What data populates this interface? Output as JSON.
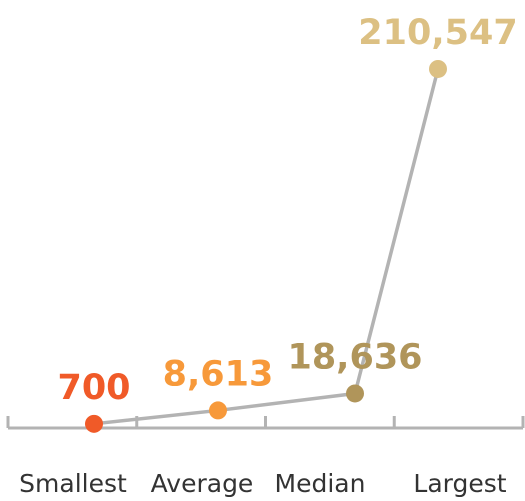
{
  "chart_data": {
    "type": "line",
    "categories": [
      "Smallest",
      "Average",
      "Median",
      "Largest"
    ],
    "values": [
      700,
      8613,
      18636,
      210547
    ],
    "value_labels": [
      "700",
      "8,613",
      "18,636",
      "210,547"
    ],
    "point_colors": [
      "#f05a28",
      "#f7993a",
      "#b0955a",
      "#dcc083"
    ],
    "line_color": "#b3b3b3",
    "axis_color": "#b3b3b3",
    "ylim": [
      0,
      220000
    ]
  }
}
